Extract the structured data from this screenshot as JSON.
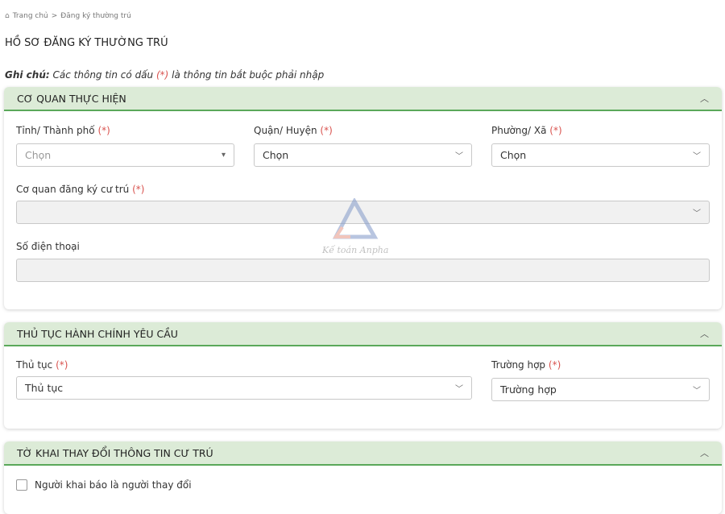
{
  "breadcrumb": {
    "home": "Trang chủ",
    "separator": ">",
    "current": "Đăng ký thường trú"
  },
  "page_title": "HỒ SƠ ĐĂNG KÝ THƯỜNG TRÚ",
  "note": {
    "prefix": "Ghi chú:",
    "text_before": "Các thông tin có dấu",
    "required_mark": "(*)",
    "text_after": "là thông tin bắt buộc phải nhập"
  },
  "watermark": "Kế toán Anpha",
  "colors": {
    "header_bg": "#dcebd7",
    "header_border": "#5aa85a",
    "required": "#d9534f"
  },
  "sections": [
    {
      "title": "CƠ QUAN THỰC HIỆN",
      "fields": [
        {
          "label": "Tỉnh/ Thành phố",
          "required": "(*)",
          "value": "Chọn"
        },
        {
          "label": "Quận/ Huyện",
          "required": "(*)",
          "value": "Chọn"
        },
        {
          "label": "Phường/ Xã",
          "required": "(*)",
          "value": "Chọn"
        },
        {
          "label": "Cơ quan đăng ký cư trú",
          "required": "(*)",
          "value": ""
        },
        {
          "label": "Số điện thoại",
          "value": ""
        }
      ]
    },
    {
      "title": "THỦ TỤC HÀNH CHÍNH YÊU CẦU",
      "fields": [
        {
          "label": "Thủ tục",
          "required": "(*)",
          "value": "Thủ tục"
        },
        {
          "label": "Trường hợp",
          "required": "(*)",
          "value": "Trường hợp"
        }
      ]
    },
    {
      "title": "TỜ KHAI THAY ĐỔI THÔNG TIN CƯ TRÚ",
      "checkbox": {
        "label": "Người khai báo là người thay đổi",
        "checked": false
      }
    }
  ]
}
